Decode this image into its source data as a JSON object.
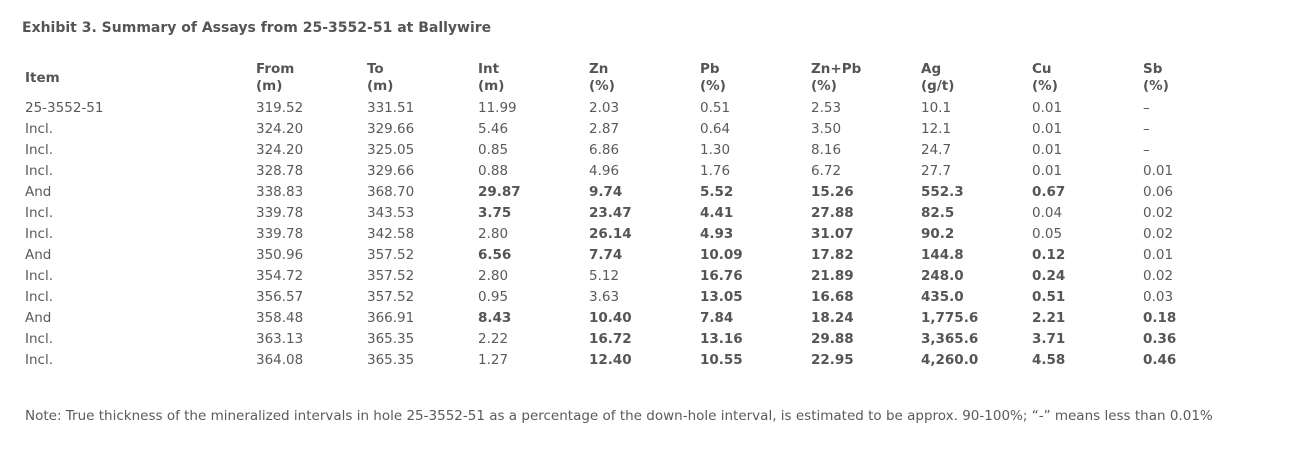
{
  "title": "Exhibit 3. Summary of Assays from 25-3552-51 at Ballywire",
  "table": {
    "headers": [
      {
        "line1": "Item",
        "line2": ""
      },
      {
        "line1": "From",
        "line2": "(m)"
      },
      {
        "line1": "To",
        "line2": "(m)"
      },
      {
        "line1": "Int",
        "line2": "(m)"
      },
      {
        "line1": "Zn",
        "line2": "(%)"
      },
      {
        "line1": "Pb",
        "line2": "(%)"
      },
      {
        "line1": "Zn+Pb",
        "line2": "(%)"
      },
      {
        "line1": "Ag",
        "line2": "(g/t)"
      },
      {
        "line1": "Cu",
        "line2": "(%)"
      },
      {
        "line1": "Sb",
        "line2": "(%)"
      }
    ],
    "rows": [
      [
        "25-3552-51",
        "319.52",
        "331.51",
        "11.99",
        "2.03",
        "0.51",
        "2.53",
        "10.1",
        "0.01",
        "–"
      ],
      [
        "Incl.",
        "324.20",
        "329.66",
        "5.46",
        "2.87",
        "0.64",
        "3.50",
        "12.1",
        "0.01",
        "–"
      ],
      [
        "Incl.",
        "324.20",
        "325.05",
        "0.85",
        "6.86",
        "1.30",
        "8.16",
        "24.7",
        "0.01",
        "–"
      ],
      [
        "Incl.",
        "328.78",
        "329.66",
        "0.88",
        "4.96",
        "1.76",
        "6.72",
        "27.7",
        "0.01",
        "0.01"
      ],
      [
        "And",
        "338.83",
        "368.70",
        "29.87",
        "9.74",
        "5.52",
        "15.26",
        "552.3",
        "0.67",
        "0.06"
      ],
      [
        "Incl.",
        "339.78",
        "343.53",
        "3.75",
        "23.47",
        "4.41",
        "27.88",
        "82.5",
        "0.04",
        "0.02"
      ],
      [
        "Incl.",
        "339.78",
        "342.58",
        "2.80",
        "26.14",
        "4.93",
        "31.07",
        "90.2",
        "0.05",
        "0.02"
      ],
      [
        "And",
        "350.96",
        "357.52",
        "6.56",
        "7.74",
        "10.09",
        "17.82",
        "144.8",
        "0.12",
        "0.01"
      ],
      [
        "Incl.",
        "354.72",
        "357.52",
        "2.80",
        "5.12",
        "16.76",
        "21.89",
        "248.0",
        "0.24",
        "0.02"
      ],
      [
        "Incl.",
        "356.57",
        "357.52",
        "0.95",
        "3.63",
        "13.05",
        "16.68",
        "435.0",
        "0.51",
        "0.03"
      ],
      [
        "And",
        "358.48",
        "366.91",
        "8.43",
        "10.40",
        "7.84",
        "18.24",
        "1,775.6",
        "2.21",
        "0.18"
      ],
      [
        "Incl.",
        "363.13",
        "365.35",
        "2.22",
        "16.72",
        "13.16",
        "29.88",
        "3,365.6",
        "3.71",
        "0.36"
      ],
      [
        "Incl.",
        "364.08",
        "365.35",
        "1.27",
        "12.40",
        "10.55",
        "22.95",
        "4,260.0",
        "4.58",
        "0.46"
      ]
    ],
    "bold_cells": [
      [],
      [],
      [],
      [],
      [
        3,
        4,
        5,
        6,
        7,
        8
      ],
      [
        3,
        4,
        5,
        6,
        7
      ],
      [
        4,
        5,
        6,
        7
      ],
      [
        3,
        4,
        5,
        6,
        7,
        8
      ],
      [
        5,
        6,
        7,
        8
      ],
      [
        5,
        6,
        7,
        8
      ],
      [
        3,
        4,
        5,
        6,
        7,
        8,
        9
      ],
      [
        4,
        5,
        6,
        7,
        8,
        9
      ],
      [
        4,
        5,
        6,
        7,
        8,
        9
      ]
    ]
  },
  "note": "Note: True thickness of the mineralized intervals in hole 25-3552-51 as a percentage of the down-hole interval, is estimated to be approx. 90-100%; “-” means less than 0.01%"
}
